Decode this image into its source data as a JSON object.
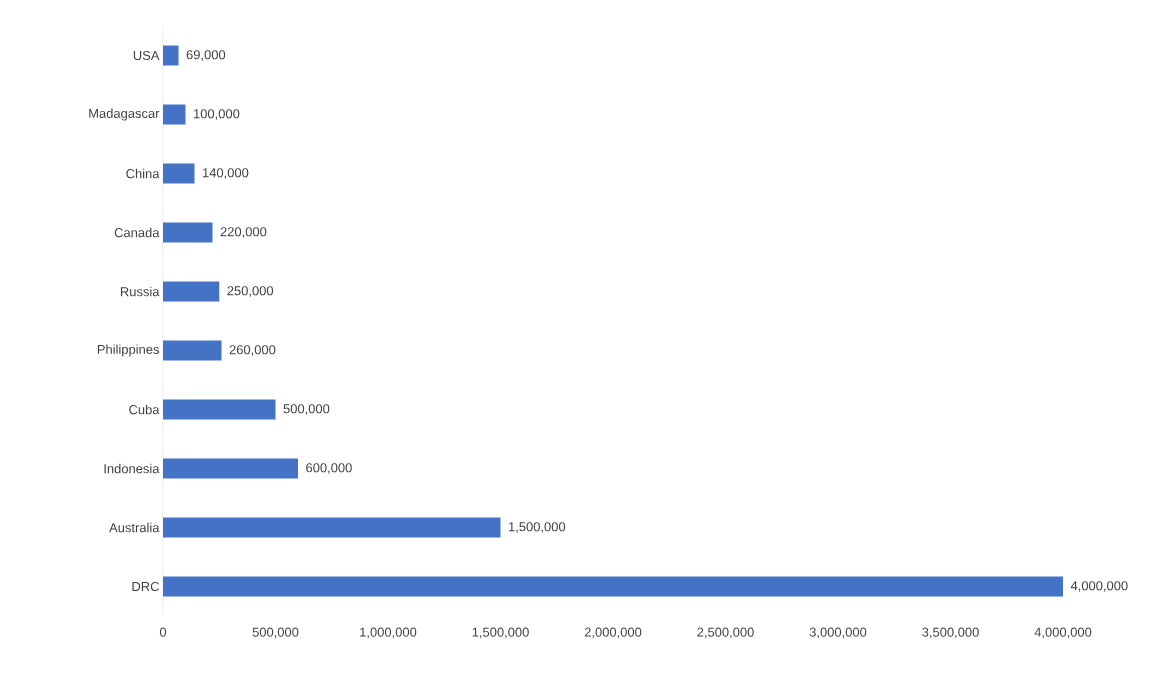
{
  "chart_data": {
    "type": "bar",
    "orientation": "horizontal",
    "categories": [
      "USA",
      "Madagascar",
      "China",
      "Canada",
      "Russia",
      "Philippines",
      "Cuba",
      "Indonesia",
      "Australia",
      "DRC"
    ],
    "values": [
      69000,
      100000,
      140000,
      220000,
      250000,
      260000,
      500000,
      600000,
      1500000,
      4000000
    ],
    "color": "#4472c4",
    "value_labels": [
      "69,000",
      "100,000",
      "140,000",
      "220,000",
      "250,000",
      "260,000",
      "500,000",
      "600,000",
      "1,500,000",
      "4,000,000"
    ],
    "xlim": [
      0,
      4000000
    ],
    "xticks": [
      0,
      {
        "value": 500000,
        "label": "500,000"
      },
      {
        "value": 1000000,
        "label": "1,000,000"
      },
      {
        "value": 1500000,
        "label": "1,500,000"
      },
      {
        "value": 2000000,
        "label": "2,000,000"
      },
      {
        "value": 2500000,
        "label": "2,500,000"
      },
      {
        "value": 3000000,
        "label": "3,000,000"
      },
      {
        "value": 3500000,
        "label": "3,500,000"
      },
      {
        "value": 4000000,
        "label": "4,000,000"
      }
    ],
    "grid": false
  }
}
